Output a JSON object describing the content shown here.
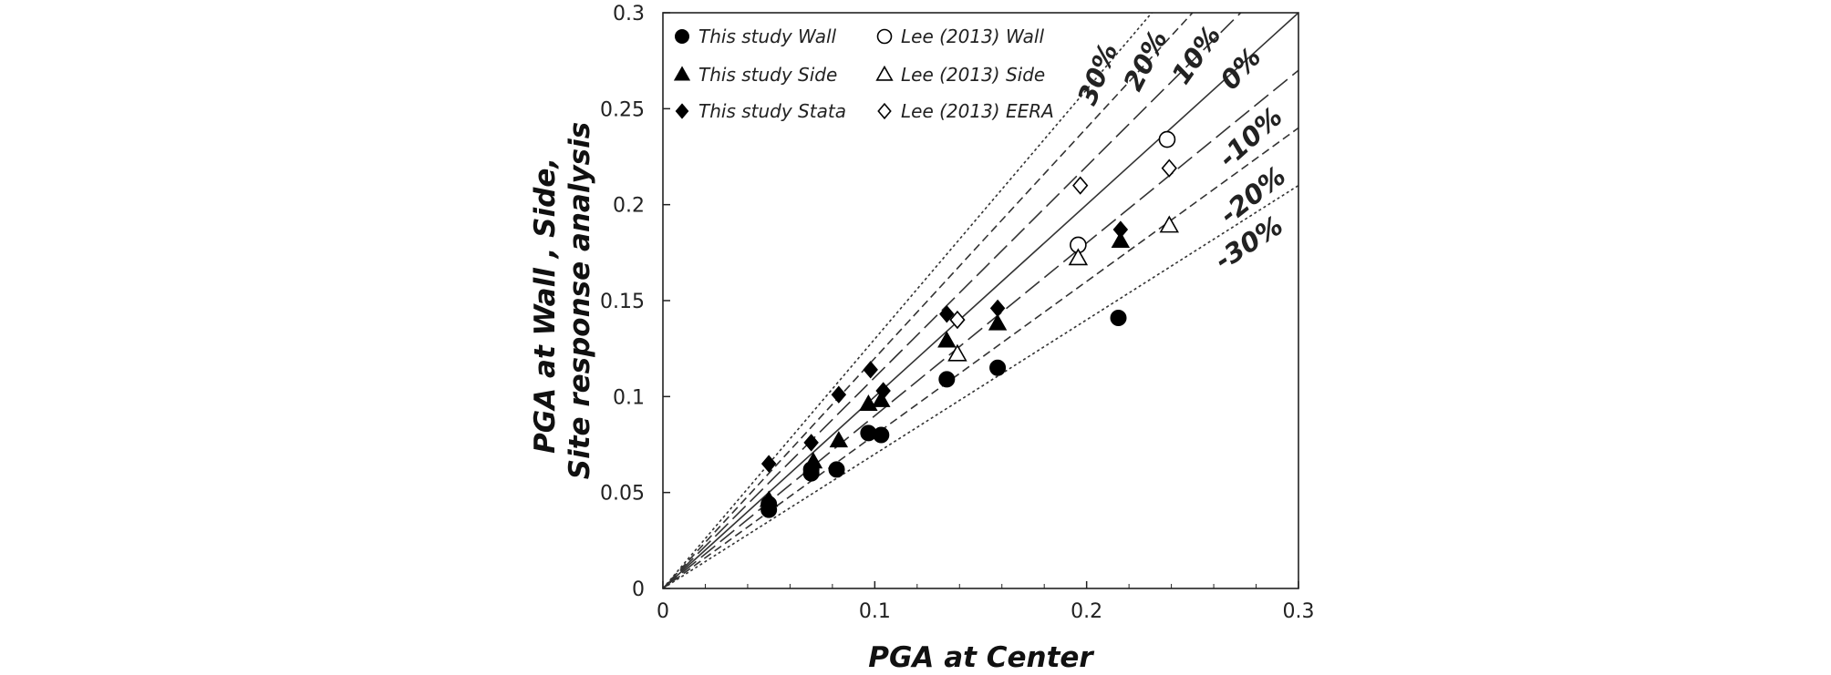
{
  "chart_data": {
    "type": "scatter",
    "title": "",
    "xlabel": "PGA at Center",
    "ylabel": "PGA at Wall , Side, Site response analysis",
    "ylabel_lines": [
      "PGA at Wall , Side,",
      "Site response analysis"
    ],
    "xlim": [
      0,
      0.3
    ],
    "ylim": [
      0,
      0.3
    ],
    "x_ticks": [
      "0",
      "0.1",
      "0.2",
      "0.3"
    ],
    "y_ticks": [
      "0",
      "0.05",
      "0.1",
      "0.15",
      "0.2",
      "0.25",
      "0.3"
    ],
    "grid": false,
    "legend_position": "top-left",
    "reference_lines": [
      {
        "label": "30%",
        "slope": 1.3
      },
      {
        "label": "20%",
        "slope": 1.2
      },
      {
        "label": "10%",
        "slope": 1.1
      },
      {
        "label": "0%",
        "slope": 1.0
      },
      {
        "label": "-10%",
        "slope": 0.9
      },
      {
        "label": "-20%",
        "slope": 0.8
      },
      {
        "label": "-30%",
        "slope": 0.7
      }
    ],
    "series": [
      {
        "name": "This study Wall",
        "marker": "circle",
        "filled": true,
        "points": [
          [
            0.05,
            0.041
          ],
          [
            0.05,
            0.044
          ],
          [
            0.07,
            0.06
          ],
          [
            0.07,
            0.062
          ],
          [
            0.082,
            0.062
          ],
          [
            0.097,
            0.081
          ],
          [
            0.103,
            0.08
          ],
          [
            0.134,
            0.109
          ],
          [
            0.158,
            0.115
          ],
          [
            0.215,
            0.141
          ]
        ]
      },
      {
        "name": "This study Side",
        "marker": "triangle",
        "filled": true,
        "points": [
          [
            0.05,
            0.046
          ],
          [
            0.071,
            0.066
          ],
          [
            0.083,
            0.077
          ],
          [
            0.097,
            0.096
          ],
          [
            0.103,
            0.098
          ],
          [
            0.134,
            0.129
          ],
          [
            0.158,
            0.138
          ],
          [
            0.216,
            0.181
          ]
        ]
      },
      {
        "name": "This study Stata",
        "marker": "diamond",
        "filled": true,
        "points": [
          [
            0.05,
            0.065
          ],
          [
            0.07,
            0.076
          ],
          [
            0.083,
            0.101
          ],
          [
            0.098,
            0.114
          ],
          [
            0.104,
            0.103
          ],
          [
            0.134,
            0.143
          ],
          [
            0.158,
            0.146
          ],
          [
            0.216,
            0.187
          ]
        ]
      },
      {
        "name": "Lee (2013) Wall",
        "marker": "circle",
        "filled": false,
        "points": [
          [
            0.196,
            0.179
          ],
          [
            0.238,
            0.234
          ]
        ]
      },
      {
        "name": "Lee (2013) Side",
        "marker": "triangle",
        "filled": false,
        "points": [
          [
            0.139,
            0.122
          ],
          [
            0.196,
            0.172
          ],
          [
            0.239,
            0.189
          ]
        ]
      },
      {
        "name": "Lee (2013) EERA",
        "marker": "diamond",
        "filled": false,
        "points": [
          [
            0.139,
            0.14
          ],
          [
            0.197,
            0.21
          ],
          [
            0.239,
            0.219
          ]
        ]
      }
    ]
  }
}
